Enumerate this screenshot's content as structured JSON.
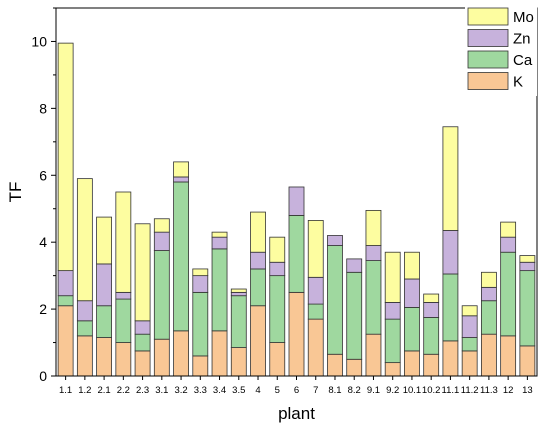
{
  "chart_data": {
    "type": "bar",
    "stacked": true,
    "xlabel": "plant",
    "ylabel": "TF",
    "ylim": [
      0,
      11
    ],
    "yticks": [
      0,
      2,
      4,
      6,
      8,
      10
    ],
    "grid": false,
    "legend_position": "top-right",
    "categories": [
      "1.1",
      "1.2",
      "2.1",
      "2.2",
      "2.3",
      "3.1",
      "3.2",
      "3.3",
      "3.4",
      "3.5",
      "4",
      "5",
      "6",
      "7",
      "8.1",
      "8.2",
      "9.1",
      "9.2",
      "10.1",
      "10.2",
      "11.1",
      "11.2",
      "11.3",
      "12",
      "13"
    ],
    "series": [
      {
        "name": "K",
        "color": "#f9c795",
        "values": [
          2.1,
          1.2,
          1.15,
          1.0,
          0.75,
          1.1,
          1.35,
          0.6,
          1.35,
          0.85,
          2.1,
          1.0,
          2.5,
          1.7,
          0.65,
          0.5,
          1.25,
          0.4,
          0.75,
          0.65,
          1.05,
          0.75,
          1.25,
          1.2,
          0.9
        ]
      },
      {
        "name": "Ca",
        "color": "#9fd89f",
        "values": [
          0.3,
          0.45,
          0.95,
          1.3,
          0.5,
          2.65,
          4.45,
          1.9,
          2.45,
          1.55,
          1.1,
          2.0,
          2.3,
          0.45,
          3.25,
          2.6,
          2.2,
          1.3,
          1.3,
          1.1,
          2.0,
          0.4,
          1.0,
          2.5,
          2.25
        ]
      },
      {
        "name": "Zn",
        "color": "#c7b2dc",
        "values": [
          0.75,
          0.6,
          1.25,
          0.2,
          0.4,
          0.55,
          0.15,
          0.5,
          0.35,
          0.1,
          0.5,
          0.4,
          0.85,
          0.8,
          0.3,
          0.4,
          0.45,
          0.5,
          0.85,
          0.45,
          1.3,
          0.65,
          0.4,
          0.45,
          0.25
        ]
      },
      {
        "name": "Mo",
        "color": "#fdfda0",
        "values": [
          6.8,
          3.65,
          1.4,
          3.0,
          2.9,
          0.4,
          0.45,
          0.2,
          0.15,
          0.1,
          1.2,
          0.75,
          0.0,
          1.7,
          0.0,
          0.0,
          1.05,
          1.5,
          0.8,
          0.25,
          3.1,
          0.3,
          0.45,
          0.45,
          0.2
        ]
      }
    ]
  }
}
